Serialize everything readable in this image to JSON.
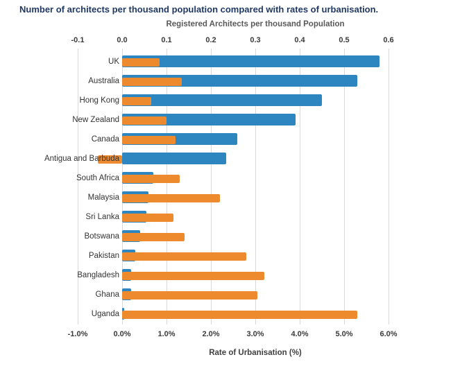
{
  "title": "Number of architects per thousand population compared with rates of urbanisation.",
  "colors": {
    "title_text": "#1F3864",
    "architects_bar": "#2E86C1",
    "urbanisation_bar": "#EE8A2E",
    "gridline": "#D9D9D9",
    "axis_text": "#3a3a3a",
    "axis_title_text": "#595959"
  },
  "chart_data": {
    "type": "bar",
    "orientation": "horizontal",
    "grid": true,
    "legend": "none",
    "title": "Number of architects per thousand population compared with rates of urbanisation.",
    "top_axis": {
      "title": "Registered Architects per thousand Population",
      "tick_labels": [
        "-0.1",
        "0.0",
        "0.1",
        "0.2",
        "0.3",
        "0.4",
        "0.5",
        "0.6"
      ],
      "range": [
        -0.1,
        0.6
      ]
    },
    "bottom_axis": {
      "title": "Rate of Urbanisation (%)",
      "tick_labels": [
        "-1.0%",
        "0.0%",
        "1.0%",
        "2.0%",
        "3.0%",
        "4.0%",
        "5.0%",
        "6.0%"
      ],
      "range": [
        -1.0,
        6.0
      ]
    },
    "categories": [
      "UK",
      "Australia",
      "Hong Kong",
      "New Zealand",
      "Canada",
      "Antigua and Barbuda",
      "South Africa",
      "Malaysia",
      "Sri Lanka",
      "Botswana",
      "Pakistan",
      "Bangladesh",
      "Ghana",
      "Uganda"
    ],
    "series": [
      {
        "name": "Registered Architects per thousand Population",
        "axis": "top",
        "color_key": "architects_bar",
        "values": [
          0.58,
          0.53,
          0.45,
          0.39,
          0.26,
          0.235,
          0.07,
          0.06,
          0.055,
          0.04,
          0.03,
          0.02,
          0.02,
          0.005
        ]
      },
      {
        "name": "Rate of Urbanisation (%)",
        "axis": "bottom",
        "color_key": "urbanisation_bar",
        "values": [
          0.85,
          1.35,
          0.65,
          1.0,
          1.2,
          -0.55,
          1.3,
          2.2,
          1.15,
          1.4,
          2.8,
          3.2,
          3.05,
          5.3
        ]
      }
    ]
  }
}
